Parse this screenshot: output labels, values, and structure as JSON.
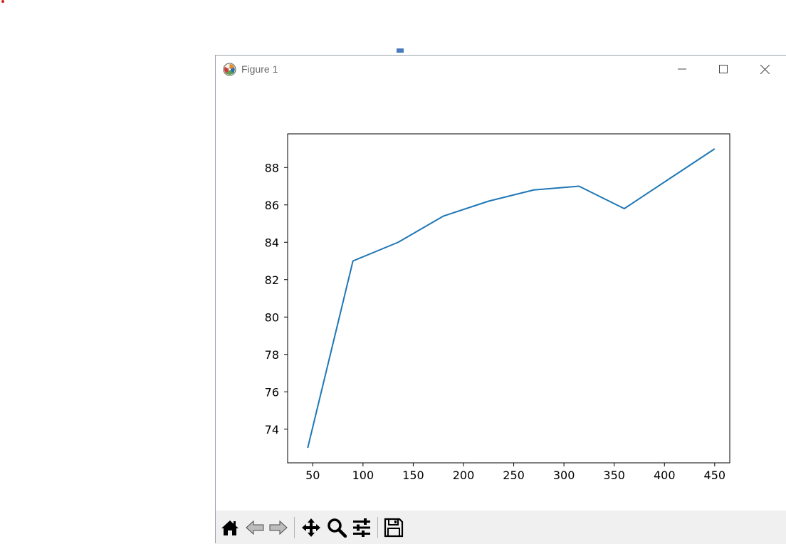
{
  "window": {
    "title": "Figure 1"
  },
  "toolbar": {
    "buttons": [
      {
        "name": "home-button",
        "icon": "home-icon"
      },
      {
        "name": "back-button",
        "icon": "back-arrow-icon"
      },
      {
        "name": "forward-button",
        "icon": "forward-arrow-icon"
      },
      {
        "name": "pan-button",
        "icon": "move-icon"
      },
      {
        "name": "zoom-button",
        "icon": "magnifier-icon"
      },
      {
        "name": "configure-subplots-button",
        "icon": "sliders-icon"
      },
      {
        "name": "save-button",
        "icon": "floppy-disk-icon"
      }
    ]
  },
  "chart_data": {
    "type": "line",
    "title": "",
    "xlabel": "",
    "ylabel": "",
    "xlim": [
      25,
      465
    ],
    "ylim": [
      72.2,
      89.8
    ],
    "x": [
      45,
      90,
      135,
      180,
      225,
      270,
      315,
      360,
      405,
      450
    ],
    "series": [
      {
        "color": "#1f77b4",
        "values": [
          73.0,
          83.0,
          84.0,
          85.4,
          86.2,
          86.8,
          87.0,
          85.8,
          87.4,
          89.0
        ]
      }
    ],
    "xticks": [
      50,
      100,
      150,
      200,
      250,
      300,
      350,
      400,
      450
    ],
    "yticks": [
      74,
      76,
      78,
      80,
      82,
      84,
      86,
      88
    ],
    "grid": false,
    "legend": "none"
  }
}
